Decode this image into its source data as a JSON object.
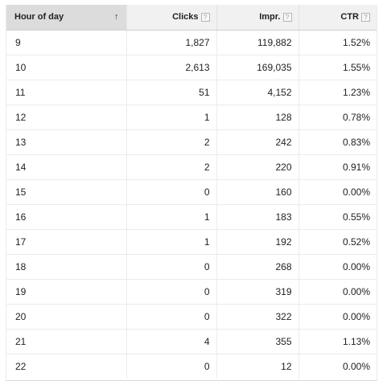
{
  "table": {
    "columns": [
      {
        "label": "Hour of day",
        "sorted": true,
        "help": false
      },
      {
        "label": "Clicks",
        "sorted": false,
        "help": true
      },
      {
        "label": "Impr.",
        "sorted": false,
        "help": true
      },
      {
        "label": "CTR",
        "sorted": false,
        "help": true
      }
    ],
    "sort_glyph": "↑",
    "help_glyph": "?",
    "rows": [
      {
        "hour": "9",
        "clicks": "1,827",
        "impr": "119,882",
        "ctr": "1.52%"
      },
      {
        "hour": "10",
        "clicks": "2,613",
        "impr": "169,035",
        "ctr": "1.55%"
      },
      {
        "hour": "11",
        "clicks": "51",
        "impr": "4,152",
        "ctr": "1.23%"
      },
      {
        "hour": "12",
        "clicks": "1",
        "impr": "128",
        "ctr": "0.78%"
      },
      {
        "hour": "13",
        "clicks": "2",
        "impr": "242",
        "ctr": "0.83%"
      },
      {
        "hour": "14",
        "clicks": "2",
        "impr": "220",
        "ctr": "0.91%"
      },
      {
        "hour": "15",
        "clicks": "0",
        "impr": "160",
        "ctr": "0.00%"
      },
      {
        "hour": "16",
        "clicks": "1",
        "impr": "183",
        "ctr": "0.55%"
      },
      {
        "hour": "17",
        "clicks": "1",
        "impr": "192",
        "ctr": "0.52%"
      },
      {
        "hour": "18",
        "clicks": "0",
        "impr": "268",
        "ctr": "0.00%"
      },
      {
        "hour": "19",
        "clicks": "0",
        "impr": "319",
        "ctr": "0.00%"
      },
      {
        "hour": "20",
        "clicks": "0",
        "impr": "322",
        "ctr": "0.00%"
      },
      {
        "hour": "21",
        "clicks": "4",
        "impr": "355",
        "ctr": "1.13%"
      },
      {
        "hour": "22",
        "clicks": "0",
        "impr": "12",
        "ctr": "0.00%"
      }
    ]
  },
  "colors": {
    "sorted_header_bg": "#dcdcdc",
    "header_bg": "#f1f1f1",
    "grid_line": "#ebebeb"
  }
}
